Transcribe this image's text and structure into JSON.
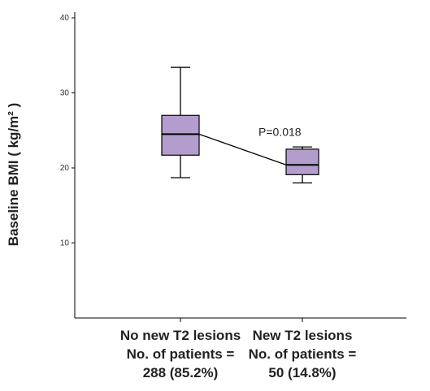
{
  "chart_data": {
    "type": "box",
    "ylabel": "Baseline BMI ( kg/m² )",
    "ylim": [
      0,
      40
    ],
    "yticks": [
      10,
      20,
      30,
      40
    ],
    "categories": [
      {
        "lines": [
          "No new  T2 lesions",
          "No. of patients =",
          "288 (85.2%)"
        ],
        "min": 18.7,
        "q1": 21.7,
        "median": 24.5,
        "q3": 27.0,
        "max": 33.4
      },
      {
        "lines": [
          "New  T2 lesions",
          "No. of patients =",
          "50 (14.8%)"
        ],
        "min": 18.0,
        "q1": 19.1,
        "median": 20.4,
        "q3": 22.5,
        "max": 22.8
      }
    ],
    "annotation": "P=0.018",
    "colors": {
      "box_fill": "#b39dcc",
      "box_stroke": "#000000",
      "axis": "#000000"
    }
  }
}
